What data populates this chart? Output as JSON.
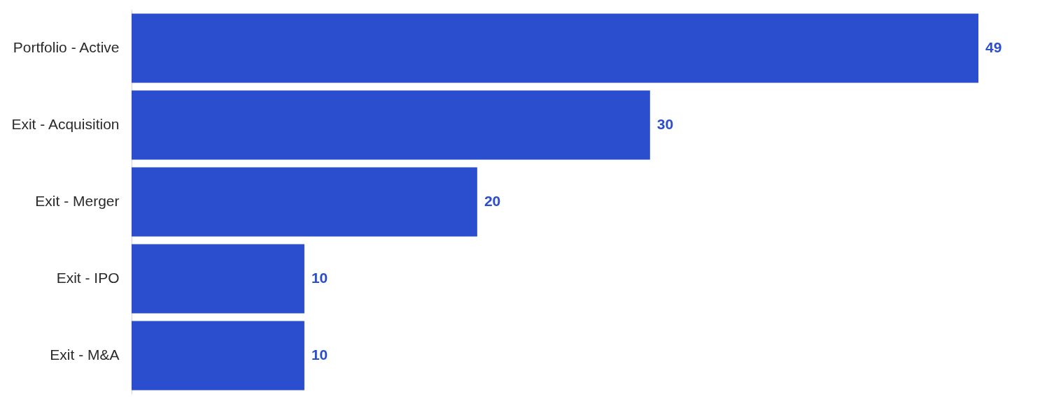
{
  "chart_data": {
    "type": "bar",
    "orientation": "horizontal",
    "categories": [
      "Portfolio - Active",
      "Exit - Acquisition",
      "Exit - Merger",
      "Exit - IPO",
      "Exit - M&A"
    ],
    "values": [
      49,
      30,
      20,
      10,
      10
    ],
    "color": "#2b4ecf",
    "data_labels": true
  }
}
